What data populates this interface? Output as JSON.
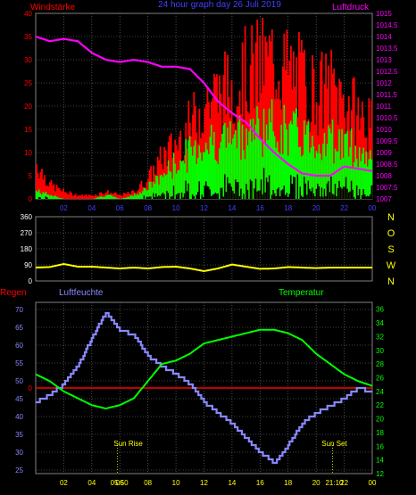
{
  "header": {
    "left_label": "Windstärke",
    "center_label": "24 hour graph day  26 Juli 2019",
    "right_label": "Luftdruck"
  },
  "time_axis": {
    "ticks": [
      "02",
      "04",
      "06",
      "08",
      "10",
      "12",
      "14",
      "16",
      "18",
      "20",
      "22",
      "00"
    ],
    "tick_hours": [
      2,
      4,
      6,
      8,
      10,
      12,
      14,
      16,
      18,
      20,
      22,
      24
    ]
  },
  "colors": {
    "wind_gust": "#ff0000",
    "wind_avg": "#00ff00",
    "wind_min": "#000000",
    "pressure": "#ff00ff",
    "direction": "#ffff00",
    "rain": "#ff0000",
    "humidity": "#8888ff",
    "temperature": "#00ff00",
    "grid": "#808080",
    "frame": "#808080",
    "sun_marker": "#ffff00"
  },
  "panel_wind": {
    "left_ticks": [
      "0",
      "5",
      "10",
      "15",
      "20",
      "25",
      "30",
      "35",
      "40"
    ],
    "right_ticks": [
      "1007",
      "1007.5",
      "1008",
      "1008.5",
      "1009",
      "1009.5",
      "1010",
      "1010.5",
      "1011",
      "1011.5",
      "1012",
      "1012.5",
      "1013",
      "1013.5",
      "1014",
      "1014.5",
      "1015"
    ]
  },
  "panel_direction": {
    "left_ticks": [
      "0",
      "90",
      "180",
      "270",
      "360"
    ],
    "compass": [
      "N",
      "W",
      "S",
      "O",
      "N"
    ]
  },
  "panel_climate": {
    "left_label": "Regen",
    "hum_label": "Luftfeuchte",
    "temp_label": "Temperatur",
    "hum_ticks": [
      "25",
      "30",
      "35",
      "40",
      "45",
      "50",
      "55",
      "60",
      "65",
      "70"
    ],
    "rain_tick": "0",
    "temp_ticks": [
      "12",
      "14",
      "16",
      "18",
      "20",
      "22",
      "24",
      "26",
      "28",
      "30",
      "32",
      "34",
      "36"
    ],
    "sunrise_label": "Sun Rise",
    "sunset_label": "Sun Set",
    "sunrise_time": "05:50",
    "sunset_time": "21:10"
  },
  "chart_data": [
    {
      "type": "line",
      "title": "",
      "ylabel": "Windstärke",
      "y2label": "Luftdruck",
      "ylim": [
        0,
        40
      ],
      "y2lim": [
        1007,
        1015
      ],
      "grid": true,
      "series": [
        {
          "name": "pressure",
          "axis": "right",
          "x": [
            0,
            1,
            2,
            3,
            4,
            5,
            6,
            7,
            8,
            9,
            10,
            11,
            12,
            13,
            14,
            15,
            16,
            17,
            18,
            19,
            20,
            21,
            22,
            23,
            24
          ],
          "values": [
            1014.0,
            1013.8,
            1013.9,
            1013.8,
            1013.3,
            1013.0,
            1012.9,
            1013.0,
            1012.9,
            1012.7,
            1012.7,
            1012.6,
            1012.0,
            1011.2,
            1010.7,
            1010.3,
            1009.6,
            1009.0,
            1008.5,
            1008.1,
            1008.0,
            1008.0,
            1008.4,
            1008.3,
            1008.2
          ]
        },
        {
          "name": "wind_gust",
          "axis": "left",
          "x": [
            0,
            1,
            2,
            3,
            4,
            5,
            6,
            7,
            8,
            9,
            10,
            11,
            12,
            13,
            14,
            15,
            16,
            17,
            18,
            19,
            20,
            21,
            22,
            23,
            24
          ],
          "values": [
            10,
            4,
            2,
            1,
            1,
            2,
            1,
            2,
            6,
            12,
            16,
            21,
            28,
            30,
            32,
            36,
            38,
            40,
            36,
            34,
            30,
            32,
            28,
            24,
            20
          ]
        },
        {
          "name": "wind_avg",
          "axis": "left",
          "x": [
            0,
            1,
            2,
            3,
            4,
            5,
            6,
            7,
            8,
            9,
            10,
            11,
            12,
            13,
            14,
            15,
            16,
            17,
            18,
            19,
            20,
            21,
            22,
            23,
            24
          ],
          "values": [
            2,
            1,
            0,
            0,
            0,
            1,
            0,
            1,
            3,
            6,
            9,
            12,
            14,
            15,
            16,
            17,
            18,
            18,
            17,
            16,
            15,
            15,
            14,
            12,
            10
          ]
        }
      ]
    },
    {
      "type": "line",
      "title": "",
      "ylim": [
        0,
        360
      ],
      "series": [
        {
          "name": "direction",
          "x": [
            0,
            1,
            2,
            3,
            4,
            5,
            6,
            7,
            8,
            9,
            10,
            11,
            12,
            13,
            14,
            15,
            16,
            17,
            18,
            19,
            20,
            21,
            22,
            23,
            24
          ],
          "values": [
            75,
            78,
            95,
            80,
            80,
            75,
            70,
            75,
            70,
            78,
            80,
            70,
            55,
            70,
            92,
            80,
            68,
            70,
            78,
            75,
            72,
            75,
            75,
            75,
            75
          ]
        }
      ]
    },
    {
      "type": "line",
      "title": "",
      "ylabel": "Luftfeuchte",
      "y2label": "Temperatur",
      "ylim": [
        24,
        72
      ],
      "y2lim": [
        12,
        37
      ],
      "grid": true,
      "series": [
        {
          "name": "humidity",
          "axis": "left",
          "x": [
            0,
            1,
            2,
            3,
            4,
            5,
            6,
            7,
            8,
            9,
            10,
            11,
            12,
            13,
            14,
            15,
            16,
            17,
            18,
            19,
            20,
            21,
            22,
            23,
            24
          ],
          "values": [
            44,
            46,
            49,
            54,
            62,
            69,
            64,
            63,
            57,
            54,
            52,
            49,
            44,
            41,
            38,
            34,
            30,
            27,
            32,
            38,
            41,
            43,
            45,
            48,
            47
          ]
        },
        {
          "name": "temperature",
          "axis": "right",
          "x": [
            0,
            1,
            2,
            3,
            4,
            5,
            6,
            7,
            8,
            9,
            10,
            11,
            12,
            13,
            14,
            15,
            16,
            17,
            18,
            19,
            20,
            21,
            22,
            23,
            24
          ],
          "values": [
            26.5,
            25.5,
            24.0,
            23.0,
            22.0,
            21.5,
            22.0,
            23.0,
            25.5,
            28.0,
            28.5,
            29.5,
            31.0,
            31.5,
            32.0,
            32.5,
            33.0,
            33.0,
            32.5,
            31.5,
            29.5,
            28.0,
            26.5,
            25.5,
            24.8
          ]
        },
        {
          "name": "rain",
          "axis": "rain",
          "x": [
            0,
            24
          ],
          "values": [
            0,
            0
          ]
        }
      ]
    }
  ]
}
